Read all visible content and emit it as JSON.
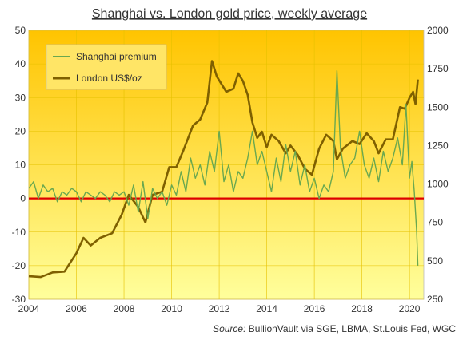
{
  "chart_data": {
    "type": "line",
    "title": "Shanghai vs. London gold price, weekly average",
    "source_label": "Source:",
    "source_text": "BullionVault via SGE, LBMA, St.Louis Fed, WGC",
    "x_ticks": [
      "2004",
      "2006",
      "2008",
      "2010",
      "2012",
      "2014",
      "2016",
      "2018",
      "2020"
    ],
    "xlim": [
      2004,
      2020.6
    ],
    "y_left": {
      "ticks": [
        "50",
        "40",
        "30",
        "20",
        "10",
        "0",
        "-10",
        "-20",
        "-30"
      ],
      "ylim": [
        -30,
        50
      ]
    },
    "y_right": {
      "ticks": [
        "2000",
        "1750",
        "1500",
        "1250",
        "1000",
        "750",
        "500",
        "250"
      ],
      "ylim": [
        250,
        2000
      ]
    },
    "zero_line_color": "#dd0000",
    "background_gradient": [
      "#ffc400",
      "#ffff9c"
    ],
    "legend_placement": "top-left",
    "series": [
      {
        "name": "Shanghai premium",
        "axis": "left",
        "color": "#6aa84f",
        "points": [
          [
            2004.0,
            3
          ],
          [
            2004.2,
            5
          ],
          [
            2004.4,
            0
          ],
          [
            2004.6,
            4
          ],
          [
            2004.8,
            2
          ],
          [
            2005.0,
            3
          ],
          [
            2005.2,
            -1
          ],
          [
            2005.4,
            2
          ],
          [
            2005.6,
            1
          ],
          [
            2005.8,
            3
          ],
          [
            2006.0,
            2
          ],
          [
            2006.2,
            -1
          ],
          [
            2006.4,
            2
          ],
          [
            2006.6,
            1
          ],
          [
            2006.8,
            0
          ],
          [
            2007.0,
            2
          ],
          [
            2007.2,
            1
          ],
          [
            2007.4,
            -1
          ],
          [
            2007.6,
            2
          ],
          [
            2007.8,
            1
          ],
          [
            2008.0,
            2
          ],
          [
            2008.2,
            -2
          ],
          [
            2008.4,
            4
          ],
          [
            2008.6,
            -4
          ],
          [
            2008.8,
            5
          ],
          [
            2009.0,
            -6
          ],
          [
            2009.2,
            3
          ],
          [
            2009.4,
            0
          ],
          [
            2009.6,
            2
          ],
          [
            2009.8,
            -2
          ],
          [
            2010.0,
            4
          ],
          [
            2010.2,
            1
          ],
          [
            2010.4,
            8
          ],
          [
            2010.6,
            2
          ],
          [
            2010.8,
            12
          ],
          [
            2011.0,
            6
          ],
          [
            2011.2,
            10
          ],
          [
            2011.4,
            4
          ],
          [
            2011.6,
            14
          ],
          [
            2011.8,
            8
          ],
          [
            2012.0,
            20
          ],
          [
            2012.2,
            5
          ],
          [
            2012.4,
            10
          ],
          [
            2012.6,
            2
          ],
          [
            2012.8,
            8
          ],
          [
            2013.0,
            6
          ],
          [
            2013.2,
            12
          ],
          [
            2013.4,
            20
          ],
          [
            2013.6,
            10
          ],
          [
            2013.8,
            14
          ],
          [
            2014.0,
            8
          ],
          [
            2014.2,
            2
          ],
          [
            2014.4,
            12
          ],
          [
            2014.6,
            5
          ],
          [
            2014.8,
            16
          ],
          [
            2015.0,
            8
          ],
          [
            2015.2,
            14
          ],
          [
            2015.4,
            4
          ],
          [
            2015.6,
            10
          ],
          [
            2015.8,
            2
          ],
          [
            2016.0,
            6
          ],
          [
            2016.2,
            0
          ],
          [
            2016.4,
            4
          ],
          [
            2016.6,
            2
          ],
          [
            2016.8,
            8
          ],
          [
            2016.95,
            38
          ],
          [
            2017.1,
            15
          ],
          [
            2017.3,
            6
          ],
          [
            2017.5,
            10
          ],
          [
            2017.7,
            12
          ],
          [
            2017.9,
            20
          ],
          [
            2018.1,
            10
          ],
          [
            2018.3,
            6
          ],
          [
            2018.5,
            12
          ],
          [
            2018.7,
            5
          ],
          [
            2018.9,
            14
          ],
          [
            2019.1,
            8
          ],
          [
            2019.3,
            12
          ],
          [
            2019.5,
            18
          ],
          [
            2019.7,
            10
          ],
          [
            2019.85,
            28
          ],
          [
            2020.0,
            6
          ],
          [
            2020.1,
            11
          ],
          [
            2020.2,
            2
          ],
          [
            2020.3,
            -10
          ],
          [
            2020.35,
            -20
          ]
        ]
      },
      {
        "name": "London US$/oz",
        "axis": "right",
        "color": "#7f6000",
        "points": [
          [
            2004.0,
            400
          ],
          [
            2004.5,
            395
          ],
          [
            2005.0,
            425
          ],
          [
            2005.5,
            430
          ],
          [
            2006.0,
            550
          ],
          [
            2006.3,
            650
          ],
          [
            2006.6,
            600
          ],
          [
            2007.0,
            650
          ],
          [
            2007.5,
            680
          ],
          [
            2007.9,
            800
          ],
          [
            2008.2,
            930
          ],
          [
            2008.6,
            850
          ],
          [
            2008.9,
            750
          ],
          [
            2009.2,
            930
          ],
          [
            2009.6,
            950
          ],
          [
            2009.9,
            1110
          ],
          [
            2010.2,
            1110
          ],
          [
            2010.5,
            1220
          ],
          [
            2010.9,
            1380
          ],
          [
            2011.2,
            1420
          ],
          [
            2011.5,
            1530
          ],
          [
            2011.7,
            1800
          ],
          [
            2011.9,
            1700
          ],
          [
            2012.1,
            1650
          ],
          [
            2012.3,
            1600
          ],
          [
            2012.6,
            1620
          ],
          [
            2012.8,
            1720
          ],
          [
            2013.0,
            1670
          ],
          [
            2013.2,
            1580
          ],
          [
            2013.4,
            1400
          ],
          [
            2013.6,
            1300
          ],
          [
            2013.8,
            1340
          ],
          [
            2014.0,
            1240
          ],
          [
            2014.2,
            1320
          ],
          [
            2014.5,
            1280
          ],
          [
            2014.8,
            1200
          ],
          [
            2015.0,
            1250
          ],
          [
            2015.3,
            1190
          ],
          [
            2015.6,
            1100
          ],
          [
            2015.9,
            1060
          ],
          [
            2016.2,
            1230
          ],
          [
            2016.5,
            1320
          ],
          [
            2016.8,
            1280
          ],
          [
            2016.95,
            1160
          ],
          [
            2017.2,
            1230
          ],
          [
            2017.6,
            1280
          ],
          [
            2017.9,
            1260
          ],
          [
            2018.2,
            1330
          ],
          [
            2018.5,
            1280
          ],
          [
            2018.7,
            1200
          ],
          [
            2019.0,
            1290
          ],
          [
            2019.3,
            1290
          ],
          [
            2019.6,
            1500
          ],
          [
            2019.8,
            1490
          ],
          [
            2020.0,
            1560
          ],
          [
            2020.15,
            1600
          ],
          [
            2020.25,
            1520
          ],
          [
            2020.35,
            1680
          ]
        ]
      }
    ]
  }
}
